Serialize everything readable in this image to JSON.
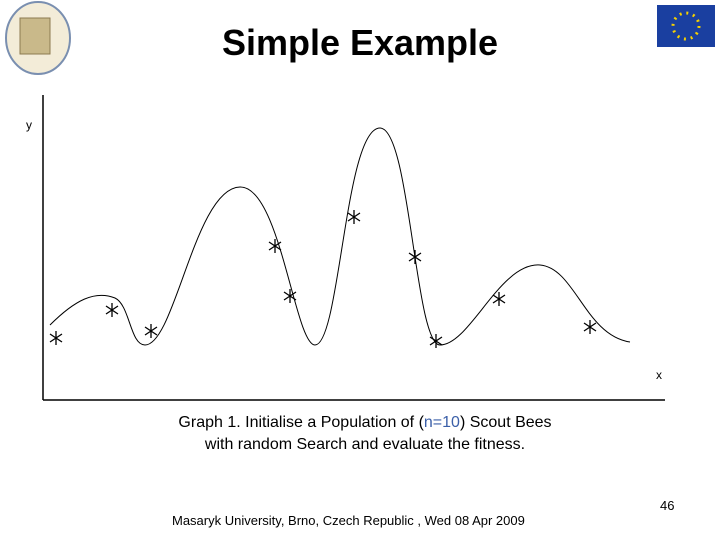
{
  "header": {
    "title": "Simple Example"
  },
  "graph": {
    "y_label": "y",
    "x_label": "x"
  },
  "caption": {
    "line1_before": "Graph 1. Initialise a Population of (",
    "line1_highlight": "n=10",
    "line1_after": ") Scout Bees",
    "line2": "with random Search and evaluate the fitness."
  },
  "footer": {
    "text": "Masaryk University, Brno, Czech Republic , Wed 08 Apr 2009",
    "page_number": "46"
  }
}
